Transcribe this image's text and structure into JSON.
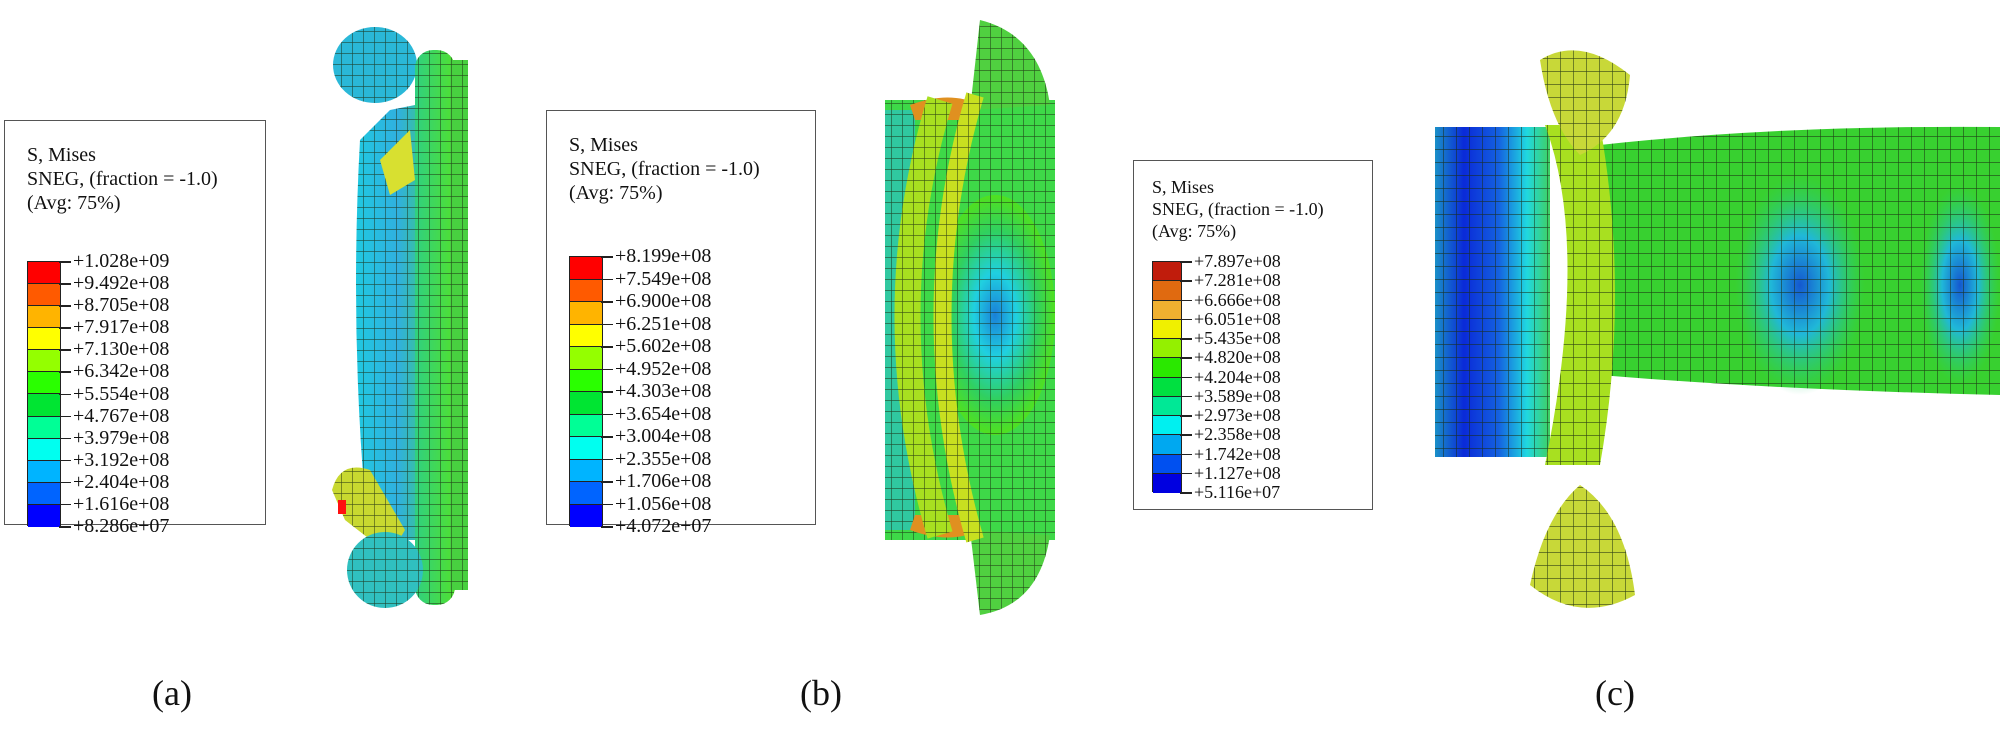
{
  "figure": {
    "panels": [
      {
        "id": "a",
        "caption": "(a)",
        "legend": {
          "title_line1": "S, Mises",
          "title_line2": "SNEG, (fraction = -1.0)",
          "title_line3": "(Avg: 75%)",
          "values": [
            "+1.028e+09",
            "+9.492e+08",
            "+8.705e+08",
            "+7.917e+08",
            "+7.130e+08",
            "+6.342e+08",
            "+5.554e+08",
            "+4.767e+08",
            "+3.979e+08",
            "+3.192e+08",
            "+2.404e+08",
            "+1.616e+08",
            "+8.286e+07"
          ],
          "colors": [
            "#ff0000",
            "#ff5a00",
            "#ffb400",
            "#ffff00",
            "#94ff00",
            "#2aff00",
            "#00e532",
            "#00ff96",
            "#00fff0",
            "#00b4ff",
            "#0064ff",
            "#0000ff"
          ]
        }
      },
      {
        "id": "b",
        "caption": "(b)",
        "legend": {
          "title_line1": "S, Mises",
          "title_line2": "SNEG, (fraction = -1.0)",
          "title_line3": "(Avg: 75%)",
          "values": [
            "+8.199e+08",
            "+7.549e+08",
            "+6.900e+08",
            "+6.251e+08",
            "+5.602e+08",
            "+4.952e+08",
            "+4.303e+08",
            "+3.654e+08",
            "+3.004e+08",
            "+2.355e+08",
            "+1.706e+08",
            "+1.056e+08",
            "+4.072e+07"
          ],
          "colors": [
            "#ff0000",
            "#ff5a00",
            "#ffb400",
            "#ffff00",
            "#94ff00",
            "#2aff00",
            "#00e532",
            "#00ff96",
            "#00fff0",
            "#00b4ff",
            "#0064ff",
            "#0000ff"
          ]
        }
      },
      {
        "id": "c",
        "caption": "(c)",
        "legend": {
          "title_line1": "S, Mises",
          "title_line2": "SNEG, (fraction = -1.0)",
          "title_line3": "(Avg: 75%)",
          "values": [
            "+7.897e+08",
            "+7.281e+08",
            "+6.666e+08",
            "+6.051e+08",
            "+5.435e+08",
            "+4.820e+08",
            "+4.204e+08",
            "+3.589e+08",
            "+2.973e+08",
            "+2.358e+08",
            "+1.742e+08",
            "+1.127e+08",
            "+5.116e+07"
          ],
          "colors": [
            "#c01c0c",
            "#e06a10",
            "#f0b030",
            "#f0f000",
            "#94f000",
            "#2ae800",
            "#00e040",
            "#00e896",
            "#00f0f0",
            "#00a8f0",
            "#0050f0",
            "#0000e0"
          ]
        }
      }
    ]
  }
}
